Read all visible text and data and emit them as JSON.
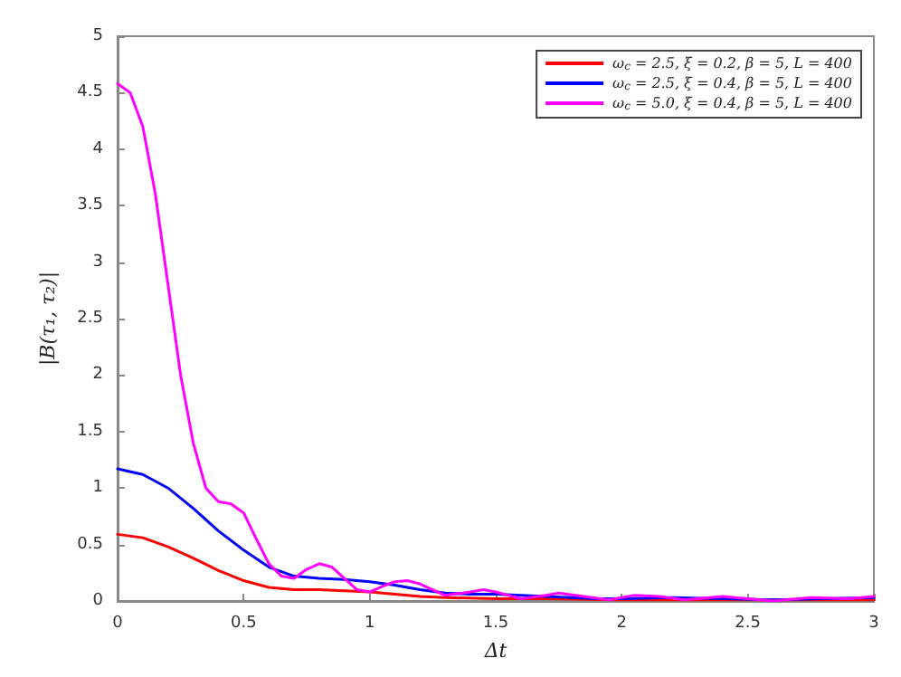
{
  "chart_data": {
    "type": "line",
    "xlabel": "Δt",
    "ylabel": "|B(τ₁, τ₂)|",
    "xlim": [
      0,
      3
    ],
    "xticks": [
      0,
      0.5,
      1,
      1.5,
      2,
      2.5,
      3
    ],
    "ylim": [
      0,
      5
    ],
    "yticks": [
      0,
      0.5,
      1,
      1.5,
      2,
      2.5,
      3,
      3.5,
      4,
      4.5,
      5
    ],
    "grid": false,
    "legend": "top right",
    "marker": "none",
    "line_style": "solid",
    "series": [
      {
        "name": "ω$_{c}$ = 2.5, ξ = 0.2, β = 5, L = 400",
        "color": "#ff0000",
        "x": [
          0,
          0.1,
          0.2,
          0.3,
          0.4,
          0.5,
          0.6,
          0.7,
          0.8,
          0.9,
          1.0,
          1.1,
          1.2,
          1.3,
          1.5,
          1.7,
          2.0,
          2.5,
          3
        ],
        "values": [
          0.59,
          0.56,
          0.48,
          0.38,
          0.27,
          0.18,
          0.12,
          0.1,
          0.1,
          0.09,
          0.08,
          0.06,
          0.04,
          0.03,
          0.02,
          0.02,
          0.01,
          0.01,
          0.01
        ]
      },
      {
        "name": "ω$_{c}$ = 2.5, ξ = 0.4, β = 5, L = 400",
        "color": "#0000ff",
        "x": [
          0,
          0.1,
          0.2,
          0.3,
          0.4,
          0.5,
          0.6,
          0.7,
          0.8,
          0.9,
          1.0,
          1.1,
          1.2,
          1.3,
          1.4,
          1.5,
          1.6,
          1.7,
          1.8,
          1.9,
          2.0,
          2.2,
          2.4,
          2.6,
          2.8,
          3
        ],
        "values": [
          1.17,
          1.12,
          1.0,
          0.82,
          0.62,
          0.45,
          0.3,
          0.22,
          0.2,
          0.19,
          0.17,
          0.14,
          0.1,
          0.07,
          0.06,
          0.06,
          0.05,
          0.04,
          0.03,
          0.02,
          0.02,
          0.03,
          0.02,
          0.01,
          0.02,
          0.03
        ]
      },
      {
        "name": "ω$_{c}$ = 5.0, ξ = 0.4, β = 5, L = 400",
        "color": "#ff00ff",
        "x": [
          0,
          0.05,
          0.1,
          0.15,
          0.2,
          0.25,
          0.3,
          0.35,
          0.4,
          0.45,
          0.5,
          0.55,
          0.6,
          0.65,
          0.7,
          0.75,
          0.8,
          0.85,
          0.9,
          0.95,
          1.0,
          1.05,
          1.1,
          1.15,
          1.2,
          1.3,
          1.4,
          1.45,
          1.5,
          1.6,
          1.7,
          1.75,
          1.85,
          1.95,
          2.05,
          2.15,
          2.25,
          2.4,
          2.5,
          2.6,
          2.75,
          2.9,
          3
        ],
        "values": [
          4.58,
          4.5,
          4.2,
          3.6,
          2.8,
          2.0,
          1.4,
          1.0,
          0.88,
          0.86,
          0.78,
          0.55,
          0.33,
          0.22,
          0.2,
          0.28,
          0.33,
          0.3,
          0.2,
          0.1,
          0.08,
          0.13,
          0.17,
          0.18,
          0.15,
          0.05,
          0.08,
          0.1,
          0.08,
          0.02,
          0.05,
          0.07,
          0.04,
          0.01,
          0.05,
          0.04,
          0.01,
          0.04,
          0.02,
          0.0,
          0.03,
          0.02,
          0.04
        ]
      }
    ]
  }
}
